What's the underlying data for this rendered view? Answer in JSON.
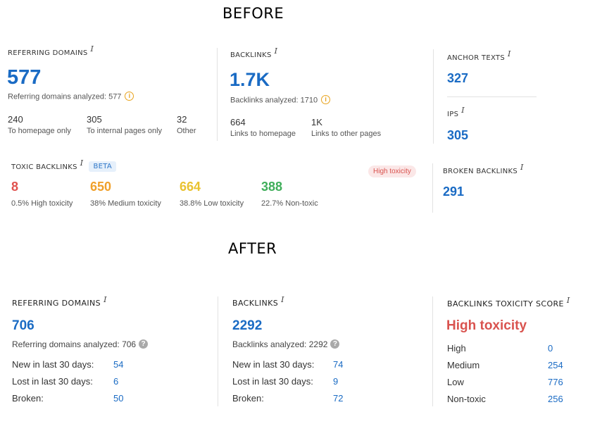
{
  "before": {
    "heading": "BEFORE",
    "referring_domains": {
      "label": "REFERRING DOMAINS",
      "info": "i",
      "value": "577",
      "analyzed": "Referring domains analyzed: 577",
      "stats": [
        {
          "value": "240",
          "label": "To homepage only"
        },
        {
          "value": "305",
          "label": "To internal pages only"
        },
        {
          "value": "32",
          "label": "Other"
        }
      ]
    },
    "backlinks": {
      "label": "BACKLINKS",
      "info": "i",
      "value": "1.7K",
      "analyzed": "Backlinks analyzed: 1710",
      "stats": [
        {
          "value": "664",
          "label": "Links to homepage"
        },
        {
          "value": "1K",
          "label": "Links to other pages"
        }
      ]
    },
    "anchor_texts": {
      "label": "ANCHOR TEXTS",
      "info": "i",
      "value": "327"
    },
    "ips": {
      "label": "IPS",
      "info": "i",
      "value": "305"
    },
    "toxic_backlinks": {
      "label": "TOXIC BACKLINKS",
      "info": "i",
      "beta": "BETA",
      "badge": "High toxicity",
      "stats": [
        {
          "value": "8",
          "label": "0.5% High toxicity",
          "color": "#e0524e"
        },
        {
          "value": "650",
          "label": "38% Medium toxicity",
          "color": "#f0a02a"
        },
        {
          "value": "664",
          "label": "38.8% Low toxicity",
          "color": "#e9c230"
        },
        {
          "value": "388",
          "label": "22.7% Non-toxic",
          "color": "#3fae5a"
        }
      ]
    },
    "broken_backlinks": {
      "label": "BROKEN BACKLINKS",
      "info": "i",
      "value": "291"
    }
  },
  "after": {
    "heading": "AFTER",
    "referring_domains": {
      "label": "REFERRING DOMAINS",
      "info": "i",
      "value": "706",
      "analyzed": "Referring domains analyzed: 706",
      "rows": [
        {
          "label": "New in last 30 days:",
          "value": "54"
        },
        {
          "label": "Lost in last 30 days:",
          "value": "6"
        },
        {
          "label": "Broken:",
          "value": "50"
        }
      ]
    },
    "backlinks": {
      "label": "BACKLINKS",
      "info": "i",
      "value": "2292",
      "analyzed": "Backlinks analyzed: 2292",
      "rows": [
        {
          "label": "New in last 30 days:",
          "value": "74"
        },
        {
          "label": "Lost in last 30 days:",
          "value": "9"
        },
        {
          "label": "Broken:",
          "value": "72"
        }
      ]
    },
    "toxicity_score": {
      "label": "BACKLINKS TOXICITY SCORE",
      "info": "i",
      "value": "High toxicity",
      "rows": [
        {
          "label": "High",
          "value": "0"
        },
        {
          "label": "Medium",
          "value": "254"
        },
        {
          "label": "Low",
          "value": "776"
        },
        {
          "label": "Non-toxic",
          "value": "256"
        }
      ]
    }
  },
  "colors": {
    "accent_blue": "#1a6bc4",
    "toxic_red": "#d9534f",
    "warn_orange": "#e8a21b"
  },
  "icons": {
    "warning": "info-circle-icon",
    "help": "question-circle-icon"
  }
}
